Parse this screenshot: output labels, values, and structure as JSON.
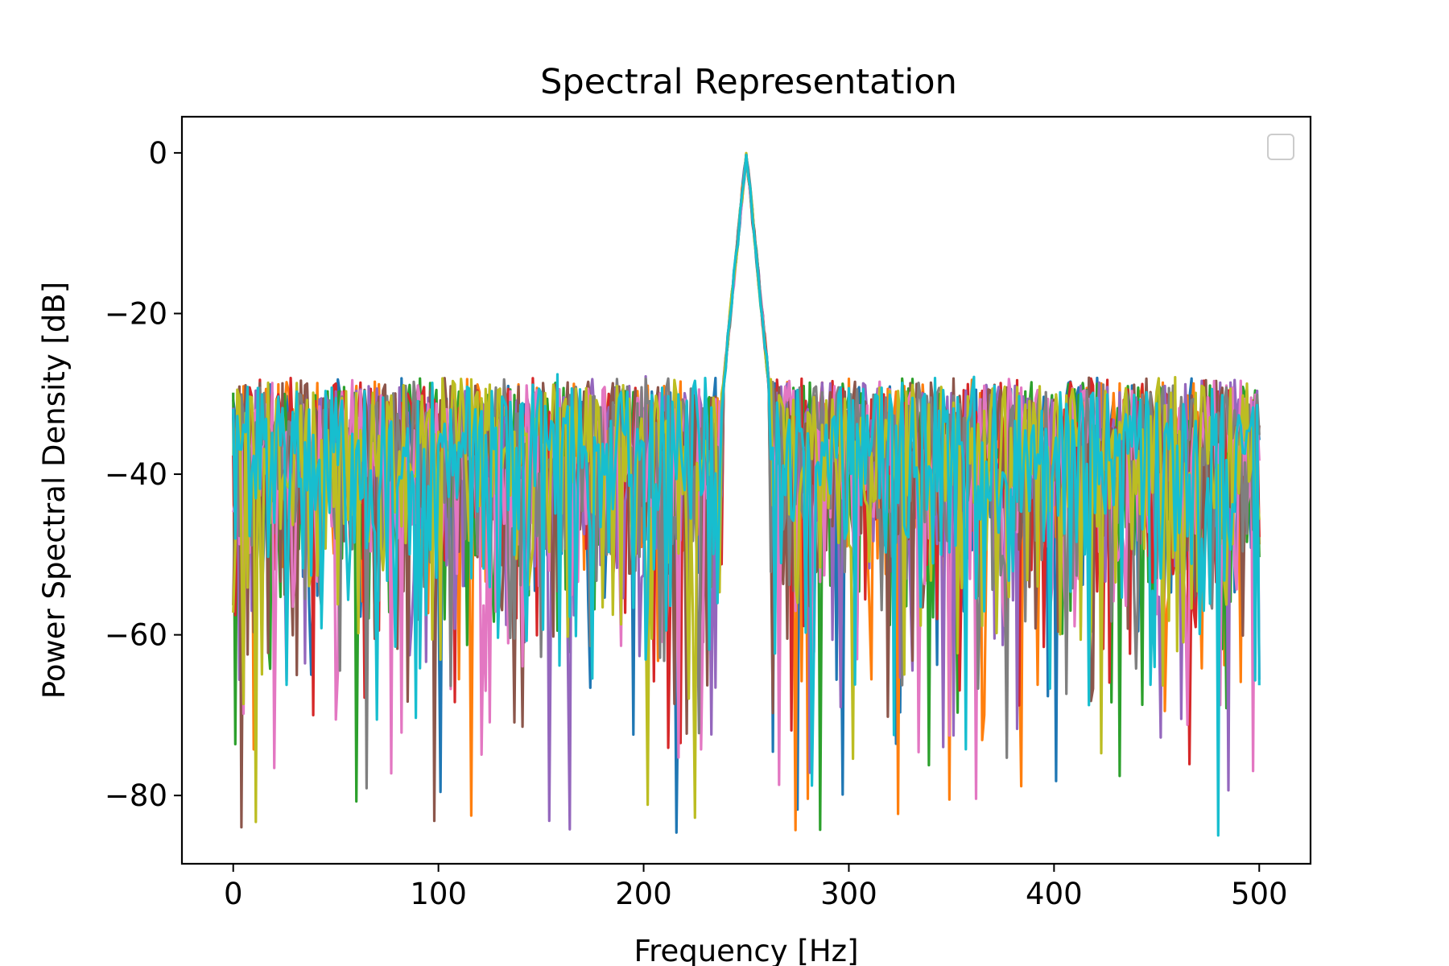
{
  "chart_data": {
    "type": "line",
    "title": "Spectral Representation",
    "xlabel": "Frequency [Hz]",
    "ylabel": "Power Spectral Density [dB]",
    "xlim": [
      -25,
      525
    ],
    "ylim": [
      -88.5,
      4.5
    ],
    "x_ticks": [
      0,
      100,
      200,
      300,
      400,
      500
    ],
    "y_ticks": [
      0,
      -20,
      -40,
      -60,
      -80
    ],
    "grid": false,
    "legend": {
      "placement": "top-right",
      "entries": []
    },
    "frequency_range": [
      0,
      500
    ],
    "peak": {
      "frequency": 250,
      "value": 0
    },
    "noise_floor_upper": -28,
    "noise_floor_lower": -85,
    "series_colors": [
      "#1f77b4",
      "#ff7f0e",
      "#2ca02c",
      "#d62728",
      "#9467bd",
      "#8c564b",
      "#e377c2",
      "#7f7f7f",
      "#bcbd22",
      "#17becf"
    ],
    "series_count": 10
  }
}
